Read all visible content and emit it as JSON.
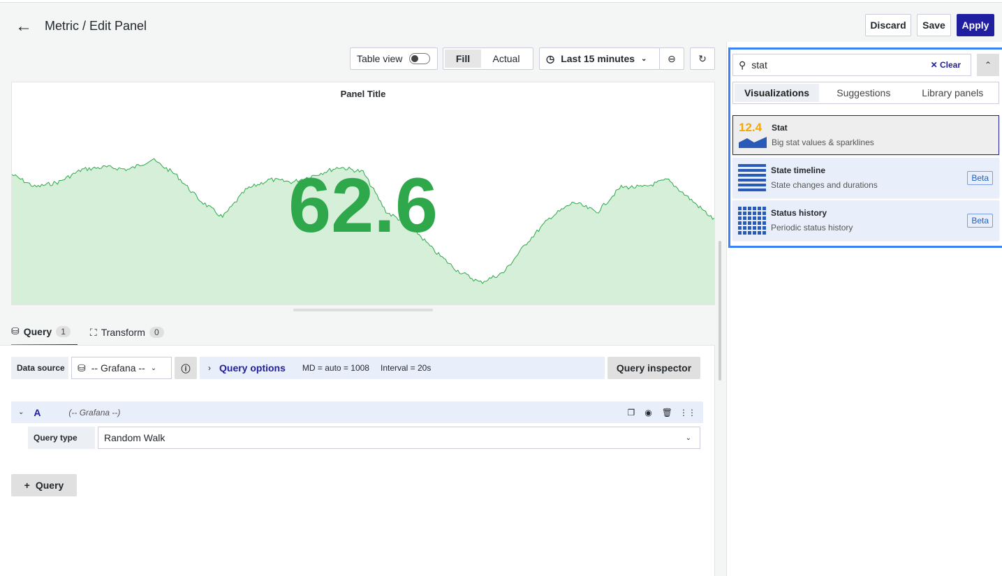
{
  "header": {
    "title": "Metric / Edit Panel",
    "discard": "Discard",
    "save": "Save",
    "apply": "Apply"
  },
  "toolbar": {
    "table_view": "Table view",
    "fill": "Fill",
    "actual": "Actual",
    "time_range": "Last 15 minutes"
  },
  "panel": {
    "title": "Panel Title",
    "value": "62.6",
    "color": "#2ea84a",
    "sparkline": [
      50,
      45,
      47,
      52,
      53,
      52,
      56,
      50,
      40,
      33,
      44,
      48,
      47,
      50,
      53,
      51,
      35,
      30,
      20,
      12,
      7,
      11,
      23,
      33,
      39,
      35,
      45,
      45,
      48,
      40,
      32
    ]
  },
  "tabs": [
    {
      "label": "Query",
      "count": "1"
    },
    {
      "label": "Transform",
      "count": "0"
    }
  ],
  "query": {
    "data_source_label": "Data source",
    "data_source": "-- Grafana --",
    "options_label": "Query options",
    "md": "MD = auto = 1008",
    "interval": "Interval = 20s",
    "inspector": "Query inspector",
    "row": {
      "name": "A",
      "source": "(-- Grafana --)",
      "type_label": "Query type",
      "type": "Random Walk"
    },
    "add": "Query"
  },
  "viz_picker": {
    "search": "stat",
    "clear": "Clear",
    "tabs": [
      "Visualizations",
      "Suggestions",
      "Library panels"
    ],
    "items": [
      {
        "name": "Stat",
        "desc": "Big stat values & sparklines",
        "icon_text": "12.4"
      },
      {
        "name": "State timeline",
        "desc": "State changes and durations",
        "badge": "Beta"
      },
      {
        "name": "Status history",
        "desc": "Periodic status history",
        "badge": "Beta"
      }
    ]
  }
}
